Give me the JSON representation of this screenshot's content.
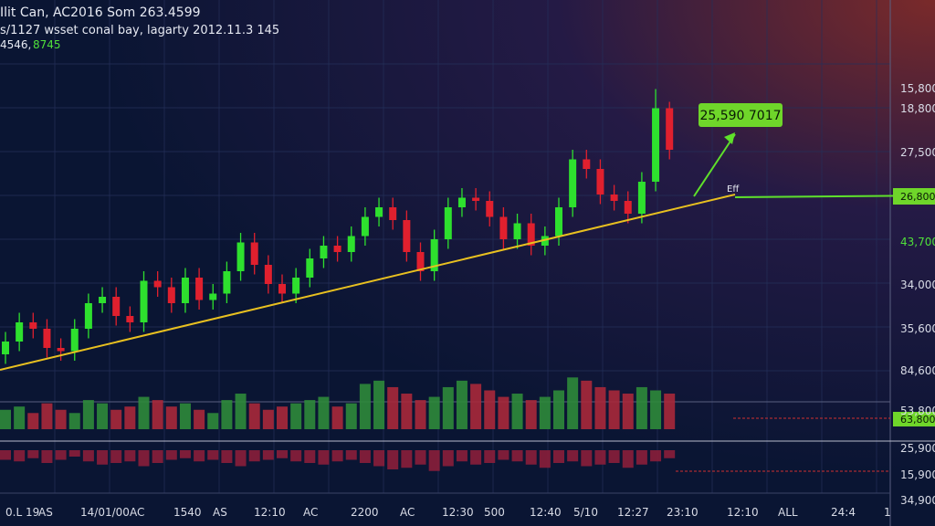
{
  "header": {
    "line1": "Ilit Can, AC2016 Som 263.4599",
    "line2": "s/1127 wsset conal bay, lagarty 2012.11.3 145",
    "line3a": "4546,",
    "line3b": "8745"
  },
  "annotations": {
    "callout": "25,590 7017",
    "marker": "Eff",
    "line_price": "26,800",
    "lower_price": "63,800"
  },
  "price_axis": [
    "15,800",
    "18,800",
    "27,500",
    "43,700",
    "34,000",
    "35,600",
    "84,600",
    "53,800",
    "25,900",
    "15,900",
    "34,900"
  ],
  "time_axis": [
    "0.L 19",
    "AS",
    "14/01/00",
    "AC",
    "1540",
    "AS",
    "12:10",
    "AC",
    "2200",
    "AC",
    "12:30",
    "500",
    "12:40",
    "5/10",
    "12:27",
    "23:10",
    "12:10",
    "ALL",
    "24:4",
    "1"
  ],
  "chart_data": {
    "type": "candlestick",
    "ylim": [
      0,
      100
    ],
    "up_color": "#2ee02e",
    "down_color": "#e0202e",
    "open": [
      12,
      16,
      22,
      20,
      14,
      13,
      20,
      28,
      30,
      24,
      22,
      35,
      33,
      28,
      36,
      29,
      31,
      38,
      47,
      40,
      34,
      31,
      36,
      42,
      46,
      44,
      49,
      55,
      58,
      54,
      44,
      38,
      48,
      58,
      61,
      60,
      55,
      48,
      53,
      46,
      49,
      58,
      73,
      70,
      62,
      60,
      56,
      66,
      89
    ],
    "high": [
      19,
      25,
      25,
      23,
      17,
      23,
      31,
      33,
      33,
      27,
      38,
      38,
      36,
      39,
      39,
      34,
      41,
      50,
      50,
      43,
      37,
      39,
      45,
      49,
      49,
      52,
      58,
      61,
      61,
      57,
      47,
      51,
      61,
      64,
      64,
      63,
      58,
      56,
      56,
      52,
      61,
      76,
      76,
      73,
      65,
      63,
      69,
      95,
      91
    ],
    "low": [
      9,
      13,
      17,
      11,
      10,
      10,
      17,
      25,
      21,
      19,
      19,
      30,
      25,
      25,
      26,
      26,
      28,
      35,
      37,
      31,
      28,
      28,
      33,
      39,
      41,
      41,
      46,
      52,
      51,
      41,
      35,
      35,
      45,
      55,
      57,
      52,
      45,
      45,
      43,
      43,
      46,
      55,
      67,
      59,
      57,
      53,
      53,
      63,
      73
    ],
    "close": [
      16,
      22,
      20,
      14,
      13,
      20,
      28,
      30,
      24,
      22,
      35,
      33,
      28,
      36,
      29,
      31,
      38,
      47,
      40,
      34,
      31,
      36,
      42,
      46,
      44,
      49,
      55,
      58,
      54,
      44,
      38,
      48,
      58,
      61,
      60,
      55,
      48,
      53,
      46,
      49,
      58,
      73,
      70,
      62,
      60,
      56,
      66,
      89,
      76
    ],
    "volume_ylim": [
      0,
      35
    ],
    "volume": [
      12,
      14,
      10,
      16,
      12,
      10,
      18,
      16,
      12,
      14,
      20,
      18,
      14,
      16,
      12,
      10,
      18,
      22,
      16,
      12,
      14,
      16,
      18,
      20,
      14,
      16,
      28,
      30,
      26,
      22,
      18,
      20,
      26,
      30,
      28,
      24,
      20,
      22,
      18,
      20,
      24,
      32,
      30,
      26,
      24,
      22,
      26,
      24,
      22
    ],
    "oscillator_ylim": [
      0,
      40
    ],
    "oscillator": [
      12,
      14,
      10,
      16,
      12,
      8,
      14,
      18,
      16,
      14,
      20,
      16,
      12,
      10,
      14,
      12,
      16,
      20,
      14,
      12,
      10,
      14,
      16,
      18,
      14,
      12,
      16,
      20,
      24,
      22,
      18,
      26,
      20,
      14,
      18,
      16,
      12,
      14,
      18,
      22,
      16,
      14,
      20,
      18,
      16,
      22,
      18,
      14,
      10
    ]
  }
}
